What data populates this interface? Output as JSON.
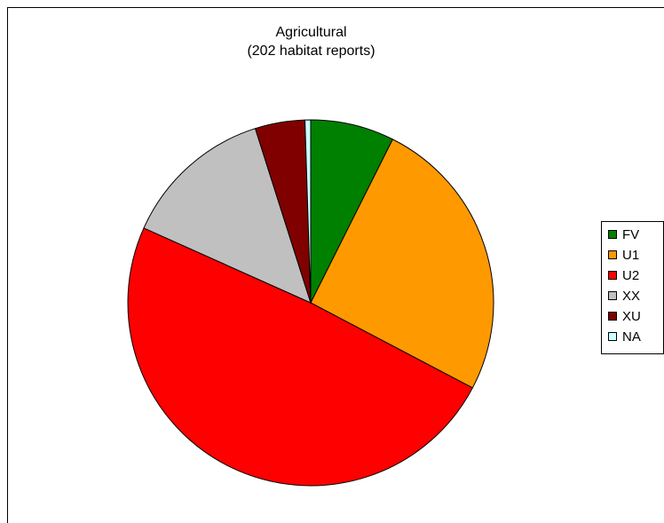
{
  "chart_data": {
    "type": "pie",
    "title": "Agricultural",
    "subtitle": "(202 habitat reports)",
    "categories": [
      "FV",
      "U1",
      "U2",
      "XX",
      "XU",
      "NA"
    ],
    "values": [
      7.4,
      25.3,
      49.0,
      13.4,
      4.4,
      0.5
    ],
    "colors": [
      "#008000",
      "#FF9900",
      "#FF0000",
      "#C0C0C0",
      "#800000",
      "#CCFFFF"
    ],
    "legend_position": "right"
  }
}
